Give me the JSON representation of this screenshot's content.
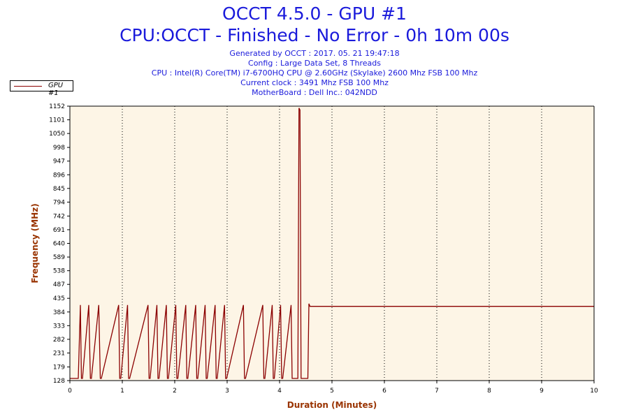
{
  "header": {
    "title": "OCCT 4.5.0 - GPU #1",
    "subtitle": "CPU:OCCT - Finished - No Error - 0h 10m 00s",
    "info_lines": [
      "Generated by OCCT : 2017. 05. 21 19:47:18",
      "Config : Large Data Set, 8 Threads",
      "CPU : Intel(R) Core(TM) i7-6700HQ CPU @ 2.60GHz (Skylake) 2600 Mhz FSB 100 Mhz",
      "Current clock : 3491 Mhz FSB 100 Mhz",
      "MotherBoard : Dell Inc.: 042NDD"
    ]
  },
  "legend": {
    "placement": "top-left",
    "entries": [
      "GPU #1"
    ]
  },
  "colors": {
    "title": "#1a1adb",
    "series": "#8b0000",
    "plot_background": "#fdf5e6",
    "axis_label": "#993300"
  },
  "chart_data": {
    "type": "line",
    "title": "OCCT 4.5.0 - GPU #1",
    "xlabel": "Duration (Minutes)",
    "ylabel": "Frequency (MHz)",
    "xlim": [
      0,
      10
    ],
    "ylim": [
      128,
      1152
    ],
    "grid": true,
    "x_ticks": [
      0,
      1,
      2,
      3,
      4,
      5,
      6,
      7,
      8,
      9,
      10
    ],
    "y_ticks": [
      128,
      179,
      231,
      282,
      333,
      384,
      435,
      487,
      538,
      589,
      640,
      691,
      742,
      794,
      845,
      896,
      947,
      998,
      1050,
      1101,
      1152
    ],
    "series": [
      {
        "name": "GPU #1",
        "x": [
          0,
          0.16,
          0.2,
          0.22,
          0.24,
          0.36,
          0.39,
          0.41,
          0.55,
          0.58,
          0.6,
          0.93,
          0.95,
          0.97,
          1.1,
          1.12,
          1.14,
          1.49,
          1.51,
          1.53,
          1.66,
          1.68,
          1.7,
          1.84,
          1.86,
          1.88,
          2.02,
          2.04,
          2.06,
          2.21,
          2.23,
          2.25,
          2.4,
          2.42,
          2.44,
          2.58,
          2.6,
          2.62,
          2.77,
          2.79,
          2.81,
          2.95,
          2.97,
          2.99,
          3.31,
          3.33,
          3.35,
          3.68,
          3.7,
          3.72,
          3.86,
          3.88,
          3.9,
          4.02,
          4.04,
          4.06,
          4.22,
          4.24,
          4.26,
          4.35,
          4.37,
          4.39,
          4.41,
          4.46,
          4.54,
          4.56,
          4.58,
          10
        ],
        "values": [
          136,
          136,
          410,
          136,
          136,
          410,
          136,
          136,
          410,
          136,
          136,
          410,
          136,
          136,
          410,
          136,
          136,
          410,
          136,
          136,
          410,
          136,
          136,
          410,
          136,
          136,
          410,
          136,
          136,
          410,
          136,
          136,
          410,
          136,
          136,
          410,
          136,
          136,
          410,
          136,
          136,
          410,
          136,
          136,
          410,
          136,
          136,
          410,
          136,
          136,
          410,
          136,
          136,
          410,
          136,
          136,
          410,
          136,
          136,
          136,
          1145,
          1138,
          136,
          136,
          136,
          415,
          405,
          405
        ]
      }
    ]
  }
}
